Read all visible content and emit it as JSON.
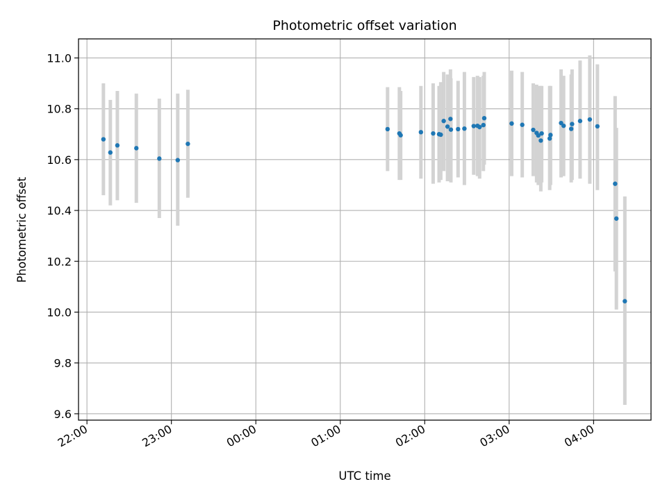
{
  "chart_data": {
    "type": "scatter",
    "title": "Photometric offset variation",
    "xlabel": "UTC time",
    "ylabel": "Photometric offset",
    "grid": true,
    "xlim_hours": [
      -2.1,
      4.68
    ],
    "ylim": [
      9.575,
      11.075
    ],
    "x_ticks": [
      {
        "h": -2,
        "label": "22:00"
      },
      {
        "h": -1,
        "label": "23:00"
      },
      {
        "h": 0,
        "label": "00:00"
      },
      {
        "h": 1,
        "label": "01:00"
      },
      {
        "h": 2,
        "label": "02:00"
      },
      {
        "h": 3,
        "label": "03:00"
      },
      {
        "h": 4,
        "label": "04:00"
      }
    ],
    "y_ticks": [
      {
        "v": 9.6,
        "label": "9.6"
      },
      {
        "v": 9.8,
        "label": "9.8"
      },
      {
        "v": 10.0,
        "label": "10.0"
      },
      {
        "v": 10.2,
        "label": "10.2"
      },
      {
        "v": 10.4,
        "label": "10.4"
      },
      {
        "v": 10.6,
        "label": "10.6"
      },
      {
        "v": 10.8,
        "label": "10.8"
      },
      {
        "v": 11.0,
        "label": "11.0"
      }
    ],
    "colors": {
      "point": "#1f77b4",
      "errorbar": "#d3d3d3",
      "grid": "#b0b0b0"
    },
    "points": [
      {
        "t": -1.805,
        "y": 10.68,
        "lo": 10.46,
        "hi": 10.9
      },
      {
        "t": -1.723,
        "y": 10.628,
        "lo": 10.42,
        "hi": 10.835
      },
      {
        "t": -1.64,
        "y": 10.656,
        "lo": 10.44,
        "hi": 10.87
      },
      {
        "t": -1.415,
        "y": 10.645,
        "lo": 10.43,
        "hi": 10.86
      },
      {
        "t": -1.143,
        "y": 10.604,
        "lo": 10.37,
        "hi": 10.84
      },
      {
        "t": -0.925,
        "y": 10.598,
        "lo": 10.34,
        "hi": 10.86
      },
      {
        "t": -0.805,
        "y": 10.662,
        "lo": 10.45,
        "hi": 10.875
      },
      {
        "t": 1.56,
        "y": 10.72,
        "lo": 10.555,
        "hi": 10.885
      },
      {
        "t": 1.7,
        "y": 10.703,
        "lo": 10.52,
        "hi": 10.885
      },
      {
        "t": 1.715,
        "y": 10.696,
        "lo": 10.52,
        "hi": 10.87
      },
      {
        "t": 1.955,
        "y": 10.708,
        "lo": 10.525,
        "hi": 10.89
      },
      {
        "t": 2.1,
        "y": 10.703,
        "lo": 10.505,
        "hi": 10.9
      },
      {
        "t": 2.17,
        "y": 10.7,
        "lo": 10.51,
        "hi": 10.89
      },
      {
        "t": 2.19,
        "y": 10.698,
        "lo": 10.52,
        "hi": 10.905
      },
      {
        "t": 2.225,
        "y": 10.752,
        "lo": 10.555,
        "hi": 10.945
      },
      {
        "t": 2.27,
        "y": 10.73,
        "lo": 10.515,
        "hi": 10.935
      },
      {
        "t": 2.305,
        "y": 10.76,
        "lo": 10.565,
        "hi": 10.955
      },
      {
        "t": 2.31,
        "y": 10.718,
        "lo": 10.51,
        "hi": 10.92
      },
      {
        "t": 2.395,
        "y": 10.72,
        "lo": 10.53,
        "hi": 10.91
      },
      {
        "t": 2.47,
        "y": 10.722,
        "lo": 10.5,
        "hi": 10.945
      },
      {
        "t": 2.58,
        "y": 10.732,
        "lo": 10.54,
        "hi": 10.925
      },
      {
        "t": 2.625,
        "y": 10.733,
        "lo": 10.535,
        "hi": 10.93
      },
      {
        "t": 2.65,
        "y": 10.728,
        "lo": 10.525,
        "hi": 10.925
      },
      {
        "t": 2.695,
        "y": 10.736,
        "lo": 10.555,
        "hi": 10.93
      },
      {
        "t": 2.705,
        "y": 10.763,
        "lo": 10.58,
        "hi": 10.945
      },
      {
        "t": 3.03,
        "y": 10.742,
        "lo": 10.535,
        "hi": 10.95
      },
      {
        "t": 3.155,
        "y": 10.737,
        "lo": 10.53,
        "hi": 10.945
      },
      {
        "t": 3.285,
        "y": 10.717,
        "lo": 10.535,
        "hi": 10.9
      },
      {
        "t": 3.325,
        "y": 10.705,
        "lo": 10.51,
        "hi": 10.895
      },
      {
        "t": 3.345,
        "y": 10.695,
        "lo": 10.5,
        "hi": 10.89
      },
      {
        "t": 3.375,
        "y": 10.675,
        "lo": 10.475,
        "hi": 10.89
      },
      {
        "t": 3.385,
        "y": 10.703,
        "lo": 10.51,
        "hi": 10.89
      },
      {
        "t": 3.48,
        "y": 10.683,
        "lo": 10.48,
        "hi": 10.89
      },
      {
        "t": 3.49,
        "y": 10.697,
        "lo": 10.5,
        "hi": 10.89
      },
      {
        "t": 3.615,
        "y": 10.744,
        "lo": 10.53,
        "hi": 10.955
      },
      {
        "t": 3.645,
        "y": 10.733,
        "lo": 10.535,
        "hi": 10.93
      },
      {
        "t": 3.735,
        "y": 10.721,
        "lo": 10.51,
        "hi": 10.935
      },
      {
        "t": 3.745,
        "y": 10.74,
        "lo": 10.52,
        "hi": 10.955
      },
      {
        "t": 3.84,
        "y": 10.752,
        "lo": 10.525,
        "hi": 10.99
      },
      {
        "t": 3.955,
        "y": 10.758,
        "lo": 10.505,
        "hi": 11.01
      },
      {
        "t": 4.045,
        "y": 10.731,
        "lo": 10.48,
        "hi": 10.975
      },
      {
        "t": 4.255,
        "y": 10.505,
        "lo": 10.16,
        "hi": 10.85
      },
      {
        "t": 4.27,
        "y": 10.368,
        "lo": 10.01,
        "hi": 10.725
      },
      {
        "t": 4.37,
        "y": 10.043,
        "lo": 9.635,
        "hi": 10.455
      }
    ]
  }
}
